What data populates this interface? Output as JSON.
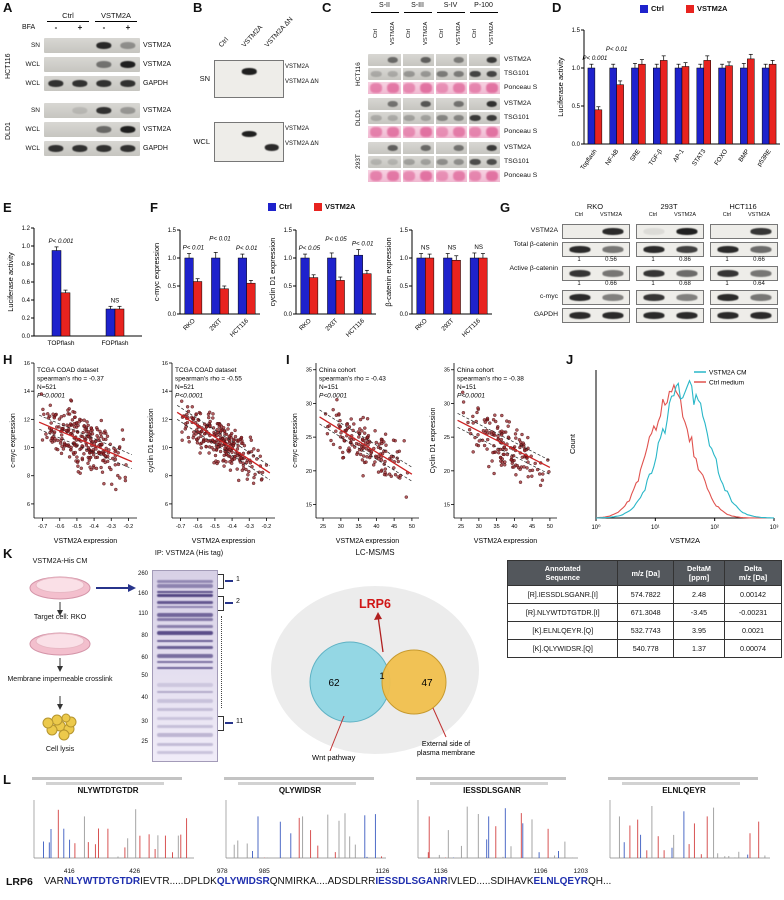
{
  "figure": {
    "panel_labels": [
      "A",
      "B",
      "C",
      "D",
      "E",
      "F",
      "G",
      "H",
      "I",
      "J",
      "K",
      "L"
    ]
  },
  "colors": {
    "ctrl_blue": "#1e22cc",
    "vstm2a_red": "#e8231f",
    "scatter_point": "#96262a",
    "trend_red": "#cc2222",
    "flow_cyan": "#29b7c8",
    "flow_red": "#e0524e",
    "venn_left": "#8fd6e4",
    "venn_right": "#f1c04d",
    "lrp6_red": "#d01616",
    "peptide_blue": "#1f2fae"
  },
  "panelA": {
    "group_headers": [
      "Ctrl",
      "VSTM2A"
    ],
    "bfa_label": "BFA",
    "bfa_signs": [
      "-",
      "+",
      "-",
      "+"
    ],
    "cells": [
      {
        "name": "HCT116",
        "rows": [
          {
            "left": "SN",
            "right": "VSTM2A",
            "bands": [
              0,
              0,
              0.9,
              0.35
            ]
          },
          {
            "left": "WCL",
            "right": "VSTM2A",
            "bands": [
              0,
              0,
              0.5,
              0.95
            ]
          },
          {
            "left": "WCL",
            "right": "GAPDH",
            "bands": [
              0.85,
              0.85,
              0.85,
              0.85
            ]
          }
        ]
      },
      {
        "name": "DLD1",
        "rows": [
          {
            "left": "SN",
            "right": "VSTM2A",
            "bands": [
              0,
              0.12,
              0.85,
              0.3
            ]
          },
          {
            "left": "WCL",
            "right": "VSTM2A",
            "bands": [
              0,
              0,
              0.55,
              0.95
            ]
          },
          {
            "left": "WCL",
            "right": "GAPDH",
            "bands": [
              0.85,
              0.85,
              0.85,
              0.85
            ]
          }
        ]
      }
    ]
  },
  "panelB": {
    "lanes": [
      "Ctrl",
      "VSTM2A",
      "VSTM2A ΔN"
    ],
    "blocks": [
      {
        "left": "SN",
        "right_labels": [
          "VSTM2A",
          "VSTM2A ΔN"
        ],
        "upper": [
          0,
          0.95,
          0
        ],
        "lower": [
          0,
          0,
          0
        ]
      },
      {
        "left": "WCL",
        "right_labels": [
          "VSTM2A",
          "VSTM2A ΔN"
        ],
        "upper": [
          0,
          0.95,
          0
        ],
        "lower": [
          0,
          0,
          0.9
        ]
      }
    ]
  },
  "panelC": {
    "fractions": [
      "S-II",
      "S-III",
      "S-IV",
      "P-100"
    ],
    "lane_labels": [
      "Ctrl",
      "VSTM2A",
      "Ctrl",
      "VSTM2A",
      "Ctrl",
      "VSTM2A",
      "Ctrl",
      "VSTM2A"
    ],
    "row_targets": [
      "VSTM2A",
      "TSG101",
      "Ponceau S"
    ],
    "cells": [
      {
        "name": "HCT116",
        "vstm2a_bands": [
          0,
          0.55,
          0,
          0.6,
          0,
          0.45,
          0,
          0.8
        ],
        "tsg101_bands": [
          0.2,
          0.2,
          0.3,
          0.3,
          0.45,
          0.45,
          0.75,
          0.75
        ]
      },
      {
        "name": "DLD1",
        "vstm2a_bands": [
          0,
          0.5,
          0,
          0.65,
          0,
          0.5,
          0,
          0.85
        ],
        "tsg101_bands": [
          0.2,
          0.2,
          0.25,
          0.25,
          0.4,
          0.4,
          0.8,
          0.8
        ]
      },
      {
        "name": "293T",
        "vstm2a_bands": [
          0,
          0.6,
          0,
          0.55,
          0,
          0.5,
          0,
          0.8
        ],
        "tsg101_bands": [
          0.15,
          0.15,
          0.25,
          0.25,
          0.35,
          0.35,
          0.7,
          0.7
        ]
      }
    ]
  },
  "chart_D": {
    "type": "bar",
    "ylabel": "Luciferase activity",
    "ylim": [
      0,
      1.5
    ],
    "yticks": [
      0,
      0.5,
      1.0,
      1.5
    ],
    "categories": [
      "Topflash",
      "NF-kB",
      "SRE",
      "TGF-β",
      "AP-1",
      "STAT3",
      "FOXO",
      "BMP",
      "p53RE"
    ],
    "series": [
      {
        "name": "Ctrl",
        "color": "#1e22cc",
        "values": [
          1.0,
          1.0,
          1.0,
          1.0,
          1.0,
          1.0,
          1.0,
          1.0,
          1.0
        ],
        "errors": [
          0.05,
          0.05,
          0.06,
          0.05,
          0.05,
          0.05,
          0.05,
          0.06,
          0.05
        ]
      },
      {
        "name": "VSTM2A",
        "color": "#e8231f",
        "values": [
          0.45,
          0.78,
          1.05,
          1.1,
          1.02,
          1.1,
          1.03,
          1.12,
          1.05
        ],
        "errors": [
          0.04,
          0.05,
          0.06,
          0.06,
          0.05,
          0.06,
          0.05,
          0.06,
          0.05
        ]
      }
    ],
    "annotations": [
      {
        "cat": 0,
        "text": "P< 0.001",
        "dy": 0
      },
      {
        "cat": 1,
        "text": "P< 0.01",
        "dy": -9
      }
    ],
    "legend": [
      {
        "label": "Ctrl",
        "color": "#1e22cc"
      },
      {
        "label": "VSTM2A",
        "color": "#e8231f"
      }
    ]
  },
  "chart_E": {
    "type": "bar",
    "ylabel": "Luciferase activity",
    "ylim": [
      0,
      1.2
    ],
    "yticks": [
      0,
      0.2,
      0.4,
      0.6,
      0.8,
      1.0,
      1.2
    ],
    "categories": [
      "TOPflash",
      "FOPflash"
    ],
    "series": [
      {
        "name": "Ctrl",
        "color": "#1e22cc",
        "values": [
          0.95,
          0.3
        ],
        "errors": [
          0.04,
          0.03
        ]
      },
      {
        "name": "VSTM2A",
        "color": "#e8231f",
        "values": [
          0.48,
          0.3
        ],
        "errors": [
          0.03,
          0.03
        ]
      }
    ],
    "annotations": [
      {
        "cat": 0,
        "text": "P< 0.001"
      },
      {
        "cat": 1,
        "text": "NS"
      }
    ]
  },
  "panelF_legend": [
    {
      "label": "Ctrl",
      "color": "#1e22cc"
    },
    {
      "label": "VSTM2A",
      "color": "#e8231f"
    }
  ],
  "chart_F1": {
    "type": "bar",
    "ylabel": "c-myc expression",
    "ylim": [
      0,
      1.5
    ],
    "yticks": [
      0,
      0.5,
      1.0,
      1.5
    ],
    "categories": [
      "RKO",
      "293T",
      "HCT116"
    ],
    "series": [
      {
        "name": "Ctrl",
        "color": "#1e22cc",
        "values": [
          1.0,
          1.0,
          1.0
        ],
        "errors": [
          0.08,
          0.1,
          0.07
        ]
      },
      {
        "name": "VSTM2A",
        "color": "#e8231f",
        "values": [
          0.58,
          0.45,
          0.55
        ],
        "errors": [
          0.05,
          0.05,
          0.05
        ]
      }
    ],
    "annotations": [
      {
        "cat": 0,
        "text": "P< 0.01"
      },
      {
        "cat": 1,
        "text": "P< 0.01",
        "dy": -8
      },
      {
        "cat": 2,
        "text": "P< 0.01"
      }
    ]
  },
  "chart_F2": {
    "type": "bar",
    "ylabel": "cyclin D1 expression",
    "ylim": [
      0,
      1.5
    ],
    "yticks": [
      0,
      0.5,
      1.0,
      1.5
    ],
    "categories": [
      "RKO",
      "293T",
      "HCT116"
    ],
    "series": [
      {
        "name": "Ctrl",
        "color": "#1e22cc",
        "values": [
          1.0,
          1.0,
          1.05
        ],
        "errors": [
          0.07,
          0.09,
          0.1
        ]
      },
      {
        "name": "VSTM2A",
        "color": "#e8231f",
        "values": [
          0.65,
          0.6,
          0.72
        ],
        "errors": [
          0.05,
          0.06,
          0.06
        ]
      }
    ],
    "annotations": [
      {
        "cat": 0,
        "text": "P< 0.05"
      },
      {
        "cat": 1,
        "text": "P< 0.05",
        "dy": -8
      },
      {
        "cat": 2,
        "text": "P< 0.01"
      }
    ]
  },
  "chart_F3": {
    "type": "bar",
    "ylabel": "β-catenin expression",
    "ylim": [
      0,
      1.5
    ],
    "yticks": [
      0,
      0.5,
      1.0,
      1.5
    ],
    "categories": [
      "RKO",
      "293T",
      "HCT116"
    ],
    "series": [
      {
        "name": "Ctrl",
        "color": "#1e22cc",
        "values": [
          1.0,
          1.0,
          1.0
        ],
        "errors": [
          0.08,
          0.08,
          0.09
        ]
      },
      {
        "name": "VSTM2A",
        "color": "#e8231f",
        "values": [
          1.0,
          0.96,
          1.0
        ],
        "errors": [
          0.07,
          0.08,
          0.08
        ]
      }
    ],
    "annotations": [
      {
        "cat": 0,
        "text": "NS"
      },
      {
        "cat": 1,
        "text": "NS"
      },
      {
        "cat": 2,
        "text": "NS"
      }
    ]
  },
  "panelG": {
    "cells": [
      "RKO",
      "293T",
      "HCT116"
    ],
    "lane_labels": [
      "Ctrl",
      "VSTM2A"
    ],
    "rows": [
      {
        "left": "VSTM2A",
        "bands": [
          [
            0,
            0.9
          ],
          [
            0.08,
            0.95
          ],
          [
            0,
            0.85
          ]
        ]
      },
      {
        "left": "Total β-catenin",
        "bands": [
          [
            0.9,
            0.55
          ],
          [
            0.9,
            0.8
          ],
          [
            0.9,
            0.6
          ]
        ],
        "ratios": [
          [
            "1",
            "0.56"
          ],
          [
            "1",
            "0.86"
          ],
          [
            "1",
            "0.66"
          ]
        ]
      },
      {
        "left": "Active β-catenin",
        "bands": [
          [
            0.85,
            0.55
          ],
          [
            0.85,
            0.6
          ],
          [
            0.85,
            0.55
          ]
        ],
        "ratios": [
          [
            "1",
            "0.66"
          ],
          [
            "1",
            "0.68"
          ],
          [
            "1",
            "0.64"
          ]
        ]
      },
      {
        "left": "c-myc",
        "bands": [
          [
            0.9,
            0.5
          ],
          [
            0.85,
            0.5
          ],
          [
            0.9,
            0.55
          ]
        ]
      },
      {
        "left": "GAPDH",
        "bands": [
          [
            0.9,
            0.9
          ],
          [
            0.9,
            0.9
          ],
          [
            0.9,
            0.9
          ]
        ]
      }
    ]
  },
  "chart_H1": {
    "type": "scatter",
    "stats": [
      "TCGA COAD dataset",
      "spearman's rho = -0.37",
      "N=521",
      "P<0.0001"
    ],
    "xlabel": "VSTM2A expression",
    "ylabel": "c-myc expression",
    "xlim": [
      -0.75,
      -0.15
    ],
    "xticks": [
      -0.7,
      -0.6,
      -0.5,
      -0.4,
      -0.3,
      -0.2
    ],
    "ylim": [
      5,
      16
    ],
    "yticks": [
      6,
      8,
      10,
      12,
      14,
      16
    ],
    "n": 260,
    "seed": 11,
    "trend": [
      -0.72,
      11.8,
      -0.18,
      9.0
    ],
    "noise": 1.2
  },
  "chart_H2": {
    "type": "scatter",
    "stats": [
      "TCGA COAD dataset",
      "spearman's rho = -0.55",
      "N=521",
      "P<0.0001"
    ],
    "xlabel": "VSTM2A expression",
    "ylabel": "cyclin D1 expression",
    "xlim": [
      -0.75,
      -0.15
    ],
    "xticks": [
      -0.7,
      -0.6,
      -0.5,
      -0.4,
      -0.3,
      -0.2
    ],
    "ylim": [
      5,
      16
    ],
    "yticks": [
      6,
      8,
      10,
      12,
      14,
      16
    ],
    "n": 260,
    "seed": 12,
    "trend": [
      -0.72,
      12.5,
      -0.18,
      8.2
    ],
    "noise": 1.0
  },
  "chart_I1": {
    "type": "scatter",
    "stats": [
      "China cohort",
      "spearman's rho = -0.43",
      "N=151",
      "P<0.0001"
    ],
    "xlabel": "VSTM2A expression",
    "ylabel": "c-myc expression",
    "xlim": [
      23,
      52
    ],
    "xticks": [
      25,
      30,
      35,
      40,
      45,
      50
    ],
    "ylim": [
      13,
      36
    ],
    "yticks": [
      15,
      20,
      25,
      30,
      35
    ],
    "n": 151,
    "seed": 13,
    "trend": [
      24,
      28,
      50,
      19.5
    ],
    "noise": 2.2
  },
  "chart_I2": {
    "type": "scatter",
    "stats": [
      "China cohort",
      "spearman's rho = -0.38",
      "N=151",
      "P<0.0001"
    ],
    "xlabel": "VSTM2A expression",
    "ylabel": "Cyclin D1 expression",
    "xlim": [
      23,
      52
    ],
    "xticks": [
      25,
      30,
      35,
      40,
      45,
      50
    ],
    "ylim": [
      13,
      36
    ],
    "yticks": [
      15,
      20,
      25,
      30,
      35
    ],
    "n": 151,
    "seed": 14,
    "trend": [
      24,
      27.5,
      50,
      20.5
    ],
    "noise": 2.4
  },
  "chart_J": {
    "type": "flow_histogram",
    "xlabel": "VSTM2A",
    "ylabel": "Count",
    "xticks": [
      "10⁰",
      "10¹",
      "10²",
      "10³"
    ],
    "legend": [
      {
        "label": "VSTM2A CM",
        "color": "#29b7c8"
      },
      {
        "label": "Ctrl medium",
        "color": "#e0524e"
      }
    ],
    "curves": [
      {
        "name": "Ctrl medium",
        "color": "#e0524e",
        "peak": 0.42,
        "width": 0.12,
        "height": 0.92,
        "seed": 31
      },
      {
        "name": "VSTM2A CM",
        "color": "#29b7c8",
        "peak": 0.5,
        "width": 0.13,
        "height": 1.0,
        "seed": 32
      }
    ]
  },
  "panelK": {
    "steps": [
      "VSTM2A-His CM",
      "Target cell: RKO",
      "Membrane impermeable crosslink",
      "Cell lysis"
    ],
    "ip_label": "IP: VSTM2A (His tag)",
    "ladder": [
      "260",
      "160",
      "110",
      "80",
      "60",
      "50",
      "40",
      "30",
      "25"
    ],
    "gel_tags": [
      "1",
      "2",
      "11"
    ],
    "lcms_label": "LC-MS/MS",
    "hit_label": "LRP6",
    "venn_left_count": "62",
    "venn_mid_count": "1",
    "venn_right_count": "47",
    "venn_left_label": "Wnt pathway",
    "venn_right_label_line1": "External side of",
    "venn_right_label_line2": "plasma membrane",
    "table": {
      "headers": [
        "Annotated\nSequence",
        "m/z [Da]",
        "DeltaM\n[ppm]",
        "Delta\nm/z [Da]"
      ],
      "rows": [
        [
          "[R].IESSDLSGANR.[I]",
          "574.7822",
          "2.48",
          "0.00142"
        ],
        [
          "[R].NLYWTDTGTDR.[I]",
          "671.3048",
          "-3.45",
          "-0.00231"
        ],
        [
          "[K].ELNLQEYR.[Q]",
          "532.7743",
          "3.95",
          "0.0021"
        ],
        [
          "[K].QLYWIDSR.[Q]",
          "540.778",
          "1.37",
          "0.00074"
        ]
      ]
    }
  },
  "panelL": {
    "spectra": [
      {
        "title": "NLYWTDTGTDR",
        "seed": 41
      },
      {
        "title": "QLYWIDSR",
        "seed": 42
      },
      {
        "title": "IESSDLSGANR",
        "seed": 43
      },
      {
        "title": "ELNLQEYR",
        "seed": 44
      }
    ],
    "protein_label": "LRP6",
    "sequence": [
      {
        "text": "VAR",
        "pep": false
      },
      {
        "text": "NLYWTDTGTDR",
        "pep": true,
        "start": "416",
        "end": "426"
      },
      {
        "text": "IEVTR.....DPLDK",
        "pep": false
      },
      {
        "text": "QLYWIDSR",
        "pep": true,
        "start": "978",
        "end": "985"
      },
      {
        "text": "QNMIRKA....ADSDLRR",
        "pep": false
      },
      {
        "text": "IESSDLSGANR",
        "pep": true,
        "start": "1126",
        "end": "1136"
      },
      {
        "text": "IVLED.....SDIHAVK",
        "pep": false
      },
      {
        "text": "ELNLQEYR",
        "pep": true,
        "start": "1196",
        "end": "1203"
      },
      {
        "text": "QH...",
        "pep": false
      }
    ]
  }
}
